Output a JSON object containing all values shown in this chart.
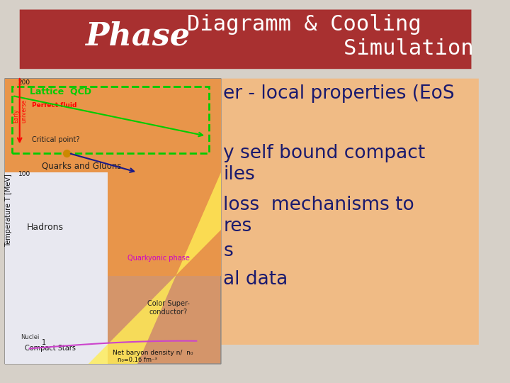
{
  "title_word1": "Phase",
  "title_word2": "Diagramm & Cooling\n                Simulation",
  "title_bg_color": "#a83030",
  "title_text_color": "#ffffff",
  "slide_bg_color": "#d6d0c8",
  "orange_box_color": "#f5b87a",
  "orange_box_text_color": "#1a1a6e",
  "text_lines": [
    "er - local properties (EoS",
    "",
    "y self bound compact",
    "iles",
    "loss  mechanisms to",
    "res",
    "s",
    "al data"
  ],
  "title_font_size": 32,
  "body_font_size": 19
}
